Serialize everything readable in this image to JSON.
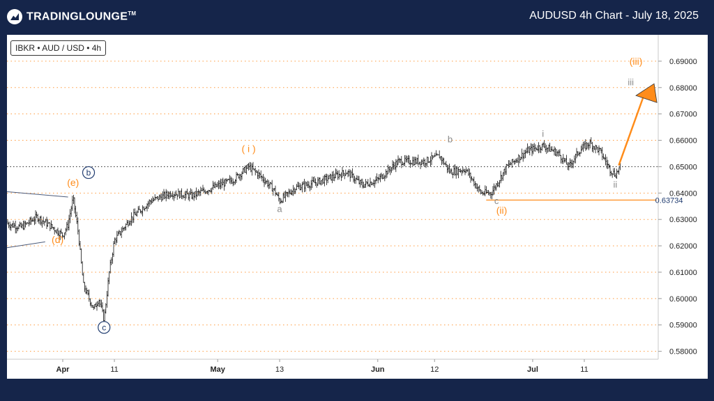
{
  "header": {
    "logo_text": "TradingLounge",
    "logo_suffix": "TM",
    "title": "AUDUSD 4h Chart - July 18, 2025"
  },
  "legend": {
    "label": "IBKR • AUD / USD • 4h"
  },
  "colors": {
    "background": "#15254a",
    "accent": "#ff8c1a",
    "wave_blue": "#1e3a6e",
    "wave_gray": "#8a8a8a"
  },
  "chart_data": {
    "type": "candlestick",
    "title": "AUDUSD 4h Chart - July 18, 2025",
    "xlabel": "",
    "ylabel": "",
    "x_tick_labels": [
      "Apr",
      "11",
      "May",
      "13",
      "Jun",
      "12",
      "Jul",
      "11"
    ],
    "y_tick_labels": [
      "0.69000",
      "0.68000",
      "0.67000",
      "0.66000",
      "0.65000",
      "0.64000",
      "0.63000",
      "0.62000",
      "0.61000",
      "0.60000",
      "0.59000",
      "0.58000"
    ],
    "ylim": [
      0.577,
      0.7
    ],
    "grid": "horizontal dotted",
    "price_path": [
      [
        "Mar 20",
        0.629
      ],
      [
        "Mar 24",
        0.627
      ],
      [
        "Mar 27",
        0.631
      ],
      [
        "Mar 30",
        0.627
      ],
      [
        "Apr 1",
        0.624
      ],
      [
        "Apr 2",
        0.628
      ],
      [
        "Apr 3",
        0.638
      ],
      [
        "Apr 4",
        0.625
      ],
      [
        "Apr 5",
        0.605
      ],
      [
        "Apr 7",
        0.596
      ],
      [
        "Apr 8",
        0.6
      ],
      [
        "Apr 9",
        0.592
      ],
      [
        "Apr 10",
        0.61
      ],
      [
        "Apr 11",
        0.622
      ],
      [
        "Apr 14",
        0.63
      ],
      [
        "Apr 18",
        0.637
      ],
      [
        "Apr 22",
        0.64
      ],
      [
        "Apr 26",
        0.639
      ],
      [
        "Apr 30",
        0.642
      ],
      [
        "May 4",
        0.645
      ],
      [
        "May 7",
        0.65
      ],
      [
        "May 9",
        0.647
      ],
      [
        "May 12",
        0.641
      ],
      [
        "May 13",
        0.637
      ],
      [
        "May 16",
        0.642
      ],
      [
        "May 20",
        0.644
      ],
      [
        "May 23",
        0.646
      ],
      [
        "May 26",
        0.648
      ],
      [
        "May 29",
        0.643
      ],
      [
        "Jun 1",
        0.645
      ],
      [
        "Jun 5",
        0.652
      ],
      [
        "Jun 10",
        0.652
      ],
      [
        "Jun 13",
        0.654
      ],
      [
        "Jun 15",
        0.648
      ],
      [
        "Jun 18",
        0.649
      ],
      [
        "Jun 21",
        0.64
      ],
      [
        "Jun 23",
        0.64
      ],
      [
        "Jun 26",
        0.65
      ],
      [
        "Jun 30",
        0.656
      ],
      [
        "Jul 3",
        0.658
      ],
      [
        "Jul 6",
        0.655
      ],
      [
        "Jul 8",
        0.65
      ],
      [
        "Jul 10",
        0.656
      ],
      [
        "Jul 12",
        0.659
      ],
      [
        "Jul 14",
        0.656
      ],
      [
        "Jul 16",
        0.649
      ],
      [
        "Jul 17",
        0.647
      ],
      [
        "Jul 18",
        0.65
      ]
    ],
    "levels": [
      {
        "label": "0.63734",
        "value": 0.63734,
        "from": "Jun 22",
        "to": "Jul 25"
      }
    ],
    "wave_labels": [
      {
        "text": "b",
        "date": "Apr 6",
        "price": 0.6467,
        "style": "circled-blue"
      },
      {
        "text": "(e)",
        "date": "Apr 3",
        "price": 0.6427,
        "style": "orange"
      },
      {
        "text": "(d)",
        "date": "Mar 31",
        "price": 0.6211,
        "style": "orange"
      },
      {
        "text": "c",
        "date": "Apr 9",
        "price": 0.588,
        "style": "circled-blue"
      },
      {
        "text": "( i )",
        "date": "May 7",
        "price": 0.6555,
        "style": "orange"
      },
      {
        "text": "a",
        "date": "May 13",
        "price": 0.6328,
        "style": "gray"
      },
      {
        "text": "b",
        "date": "Jun 15",
        "price": 0.6592,
        "style": "gray"
      },
      {
        "text": "c",
        "date": "Jun 24",
        "price": 0.6358,
        "style": "gray"
      },
      {
        "text": "(ii)",
        "date": "Jun 25",
        "price": 0.6322,
        "style": "orange"
      },
      {
        "text": "i",
        "date": "Jul 3",
        "price": 0.6613,
        "style": "gray"
      },
      {
        "text": "ii",
        "date": "Jul 17",
        "price": 0.6421,
        "style": "gray"
      },
      {
        "text": "iii",
        "date": "Jul 20",
        "price": 0.6808,
        "style": "gray"
      },
      {
        "text": "(iii)",
        "date": "Jul 21",
        "price": 0.6886,
        "style": "orange"
      }
    ]
  }
}
